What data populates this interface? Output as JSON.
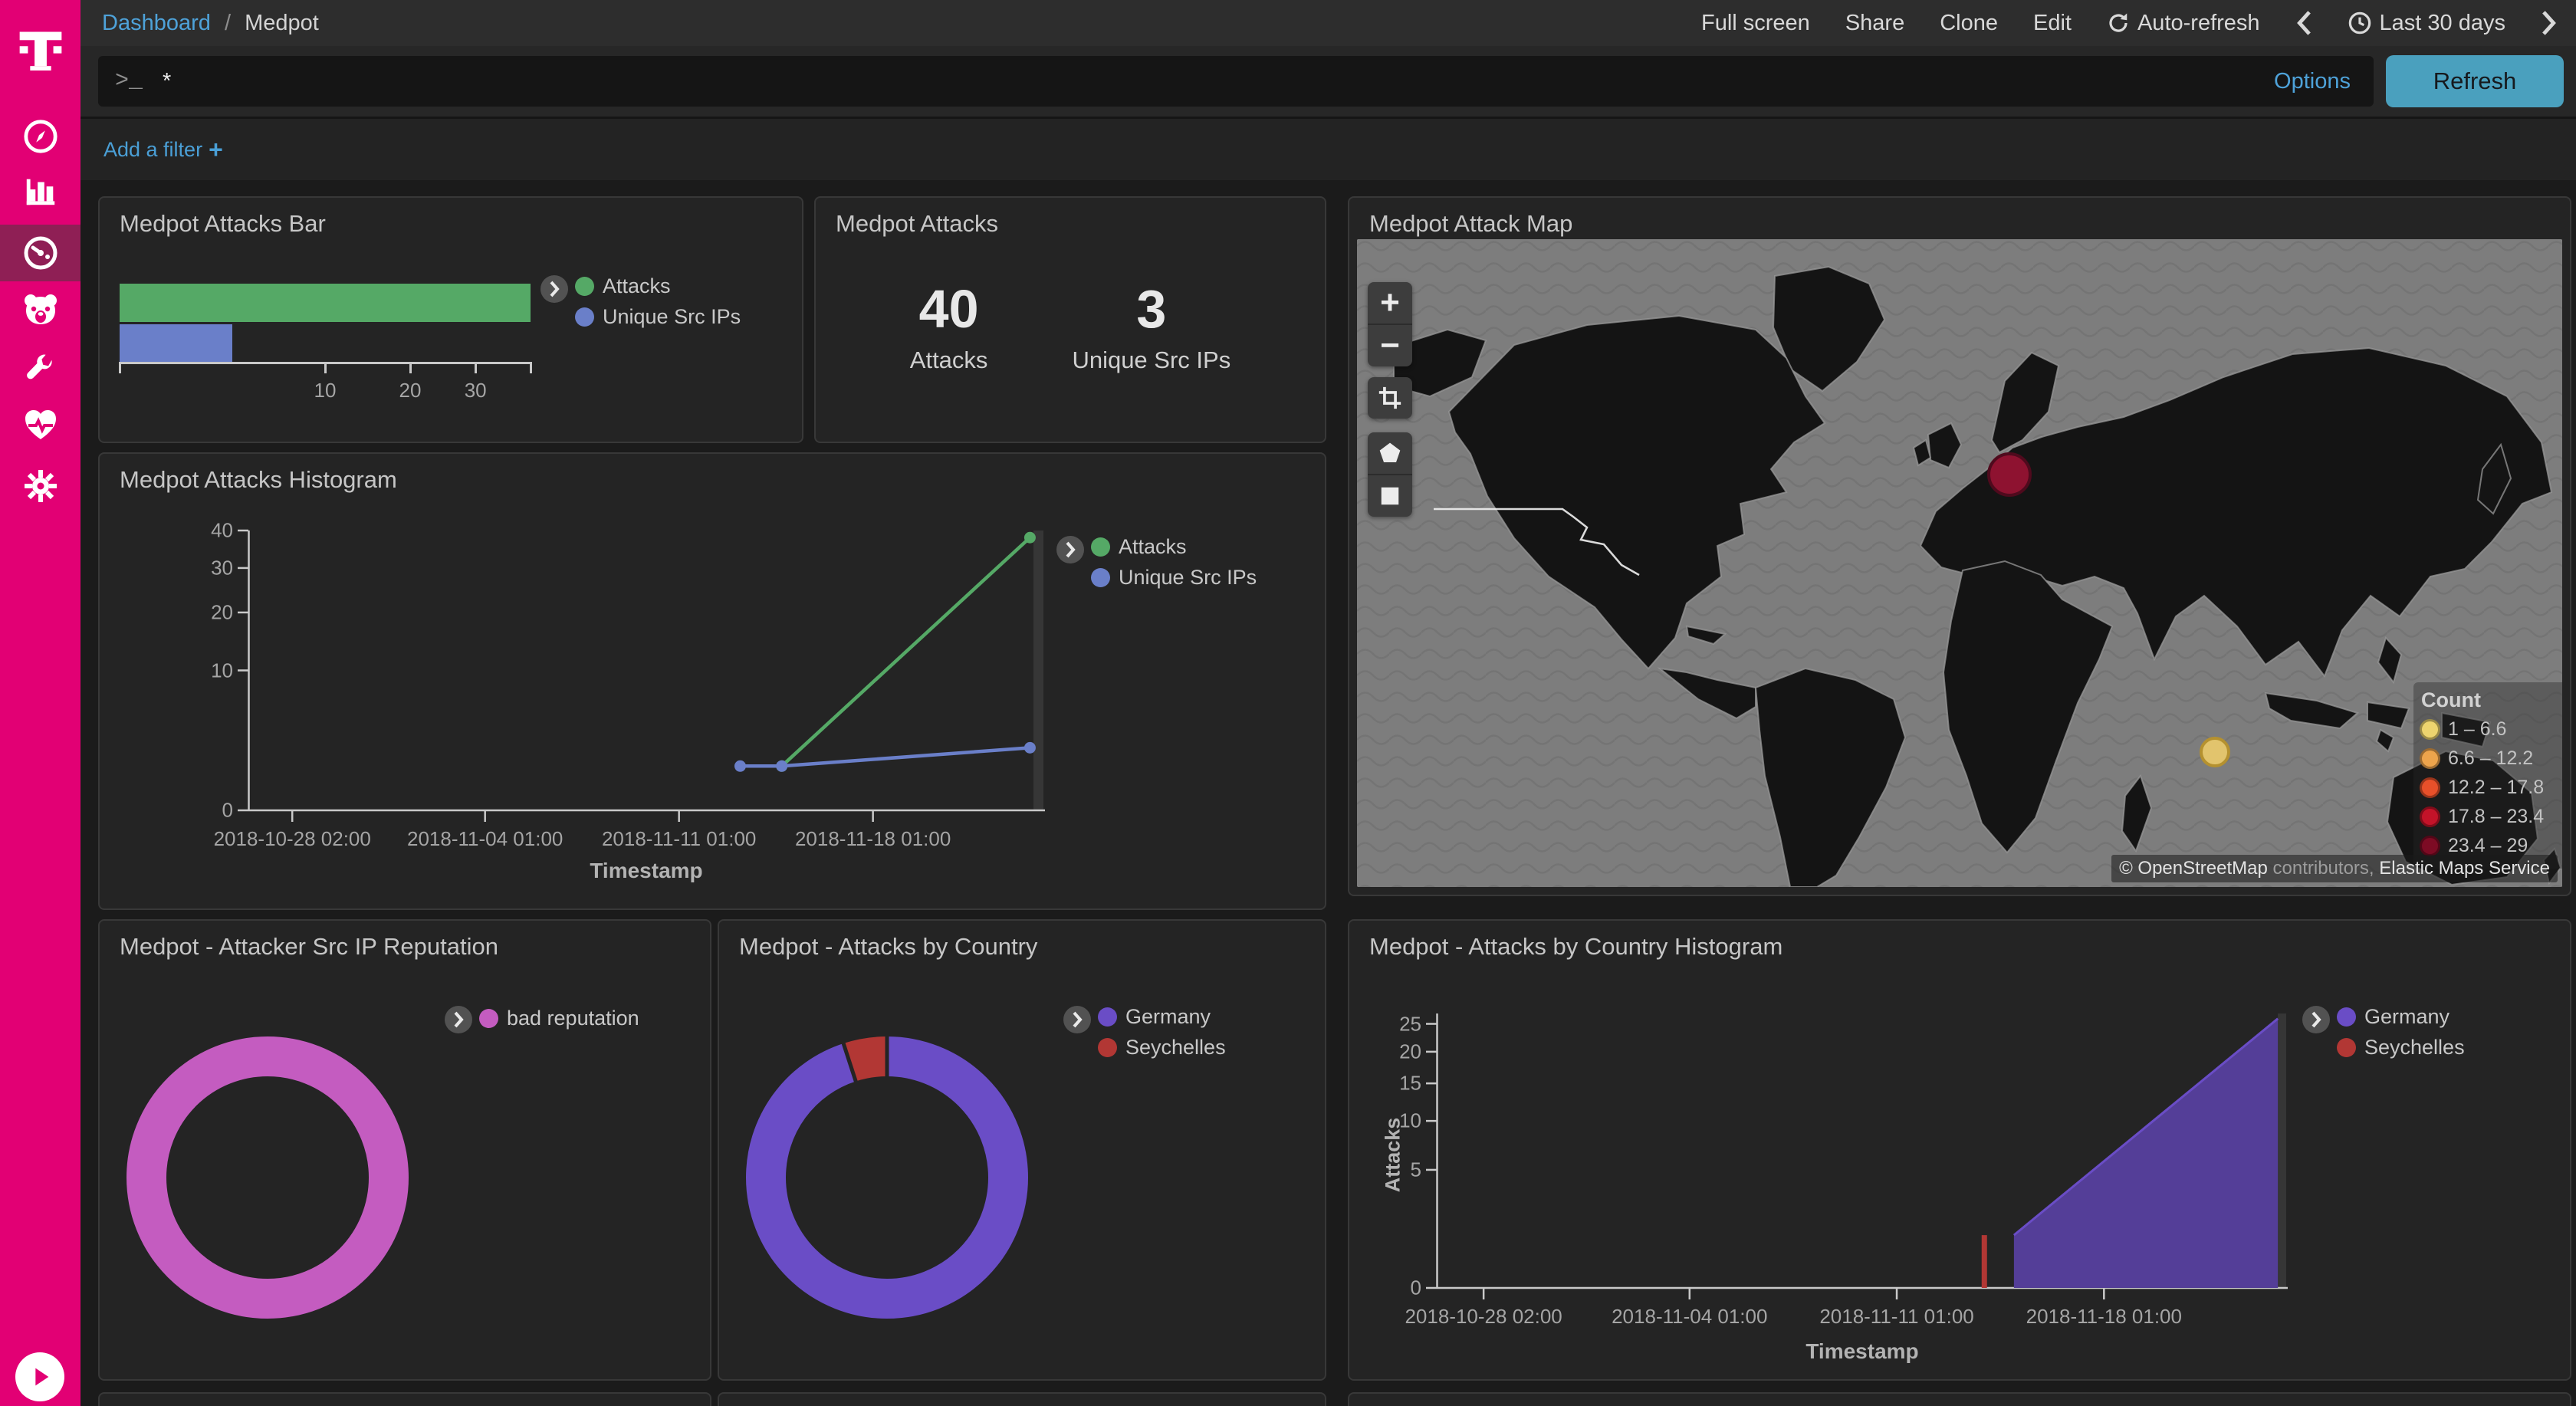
{
  "sidebar": {
    "accent_color": "#e20074",
    "items": [
      {
        "name": "discover"
      },
      {
        "name": "visualize"
      },
      {
        "name": "dashboard",
        "active": true
      },
      {
        "name": "t-pot"
      },
      {
        "name": "dev-tools"
      },
      {
        "name": "monitoring"
      },
      {
        "name": "management"
      }
    ]
  },
  "topnav": {
    "breadcrumb": {
      "root": "Dashboard",
      "separator": "/",
      "current": "Medpot"
    },
    "actions": [
      "Full screen",
      "Share",
      "Clone",
      "Edit"
    ],
    "auto_refresh_label": "Auto-refresh",
    "time_range": "Last 30 days"
  },
  "query_bar": {
    "value": "*",
    "options_label": "Options",
    "refresh_label": "Refresh"
  },
  "filter_bar": {
    "add_filter_label": "Add a filter",
    "plus": "+"
  },
  "chart_data": [
    {
      "id": "attacks_bar",
      "panel_title": "Medpot Attacks Bar",
      "type": "bar",
      "orientation": "horizontal",
      "x_scale": "sqrt",
      "xmax": 40,
      "x_ticks": [
        10,
        20,
        30
      ],
      "categories": [
        "Attacks",
        "Unique Src IPs"
      ],
      "values": [
        40,
        3
      ],
      "colors": [
        "#55a966",
        "#6a7fc9"
      ],
      "legend": [
        {
          "label": "Attacks",
          "color": "#55a966"
        },
        {
          "label": "Unique Src IPs",
          "color": "#6a7fc9"
        }
      ]
    },
    {
      "id": "attacks_metric",
      "panel_title": "Medpot Attacks",
      "type": "metric",
      "metrics": [
        {
          "value": "40",
          "label": "Attacks"
        },
        {
          "value": "3",
          "label": "Unique Src IPs"
        }
      ]
    },
    {
      "id": "attacks_histogram",
      "panel_title": "Medpot Attacks Histogram",
      "type": "line",
      "xlabel": "Timestamp",
      "x_domain": [
        "2018-10-26 12:00",
        "2018-11-24 06:00"
      ],
      "x_ticks": [
        "2018-10-28 02:00",
        "2018-11-04 01:00",
        "2018-11-11 01:00",
        "2018-11-18 01:00"
      ],
      "y_scale": "sqrt",
      "ymax": 40,
      "y_ticks": [
        0,
        10,
        20,
        30,
        40
      ],
      "current_bucket": [
        "2018-11-23 20:00",
        "2018-11-24 06:00"
      ],
      "series": [
        {
          "name": "Attacks",
          "color": "#55a966",
          "render": "line",
          "points": [
            [
              "2018-11-14 18:00",
              1
            ],
            [
              "2018-11-23 17:00",
              38
            ]
          ]
        },
        {
          "name": "Unique Src IPs",
          "color": "#6a7fc9",
          "render": "line",
          "points": [
            [
              "2018-11-13 06:00",
              1
            ],
            [
              "2018-11-14 18:00",
              1
            ],
            [
              "2018-11-23 17:00",
              2
            ]
          ]
        }
      ],
      "legend": [
        {
          "label": "Attacks",
          "color": "#55a966"
        },
        {
          "label": "Unique Src IPs",
          "color": "#6a7fc9"
        }
      ]
    },
    {
      "id": "attack_map",
      "panel_title": "Medpot Attack Map",
      "type": "map",
      "legend_title": "Count",
      "legend": [
        {
          "label": "1 – 6.6",
          "color": "#edd46e"
        },
        {
          "label": "6.6 – 12.2",
          "color": "#eda44c"
        },
        {
          "label": "12.2 – 17.8",
          "color": "#e8502a"
        },
        {
          "label": "17.8 – 23.4",
          "color": "#c31329"
        },
        {
          "label": "23.4 – 29",
          "color": "#7d0b24"
        }
      ],
      "points": [
        {
          "label": "Germany",
          "bucket": "23.4 – 29",
          "color": "#8e1230",
          "stroke": "#4f0a1d",
          "x": 851,
          "y": 307,
          "r": 27
        },
        {
          "label": "Seychelles",
          "bucket": "1 – 6.6",
          "color": "#e2c46d",
          "stroke": "#b5912f",
          "x": 1119,
          "y": 669,
          "r": 18
        }
      ],
      "attribution": {
        "prefix": "© OpenStreetMap",
        "middle": "contributors,",
        "suffix": "Elastic Maps Service"
      }
    },
    {
      "id": "src_ip_reputation",
      "panel_title": "Medpot - Attacker Src IP Reputation",
      "type": "pie",
      "donut": true,
      "slices": [
        {
          "label": "bad reputation",
          "value": 40,
          "color": "#c45cc0"
        }
      ]
    },
    {
      "id": "attacks_by_country",
      "panel_title": "Medpot - Attacks by Country",
      "type": "pie",
      "donut": true,
      "slices": [
        {
          "label": "Germany",
          "value": 38,
          "color": "#6a4dc6"
        },
        {
          "label": "Seychelles",
          "value": 2,
          "color": "#b23734"
        }
      ]
    },
    {
      "id": "attacks_by_country_histogram",
      "panel_title": "Medpot - Attacks by Country Histogram",
      "type": "area",
      "xlabel": "Timestamp",
      "ylabel": "Attacks",
      "x_domain": [
        "2018-10-26 12:00",
        "2018-11-24 06:00"
      ],
      "x_ticks": [
        "2018-10-28 02:00",
        "2018-11-04 01:00",
        "2018-11-11 01:00",
        "2018-11-18 01:00"
      ],
      "y_scale": "sqrt",
      "ymax": 27,
      "y_ticks": [
        0,
        5,
        10,
        15,
        20,
        25
      ],
      "current_bucket": [
        "2018-11-23 22:00",
        "2018-11-24 06:00"
      ],
      "series": [
        {
          "name": "Germany",
          "color": "#543e98",
          "stroke": "#6a4dc6",
          "render": "area",
          "points": [
            [
              "2018-11-15 00:00",
              1
            ],
            [
              "2018-11-23 22:00",
              26
            ]
          ]
        },
        {
          "name": "Seychelles",
          "color": "#b23734",
          "render": "bar",
          "points": [
            [
              "2018-11-14 00:00",
              1
            ]
          ]
        }
      ],
      "legend": [
        {
          "label": "Germany",
          "color": "#6a4dc6"
        },
        {
          "label": "Seychelles",
          "color": "#b23734"
        }
      ]
    }
  ]
}
